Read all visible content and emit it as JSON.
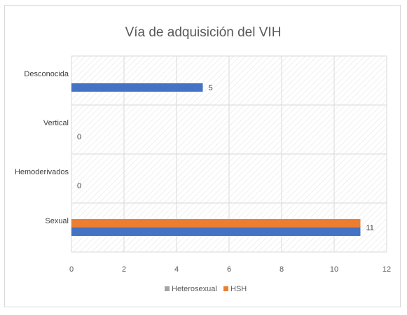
{
  "chart_data": {
    "type": "bar",
    "orientation": "horizontal",
    "title": "Vía de adquisición del VIH",
    "categories": [
      "Desconocida",
      "Vertical",
      "Hemoderivados",
      "Sexual"
    ],
    "series": [
      {
        "name": "Heterosexual",
        "values": [
          5,
          0,
          0,
          11
        ],
        "color": "#4472c4"
      },
      {
        "name": "HSH",
        "values": [
          null,
          null,
          null,
          11
        ],
        "color": "#ed7d31"
      }
    ],
    "data_labels": [
      "5",
      "0",
      "0",
      "11"
    ],
    "xlim": [
      0,
      12
    ],
    "xticks": [
      0,
      2,
      4,
      6,
      8,
      10,
      12
    ],
    "xtick_labels": [
      "0",
      "2",
      "4",
      "6",
      "8",
      "10",
      "12"
    ],
    "grid": true,
    "legend_position": "bottom",
    "legend_swatch_colors": [
      "#a5a5a5",
      "#ed7d31"
    ]
  }
}
